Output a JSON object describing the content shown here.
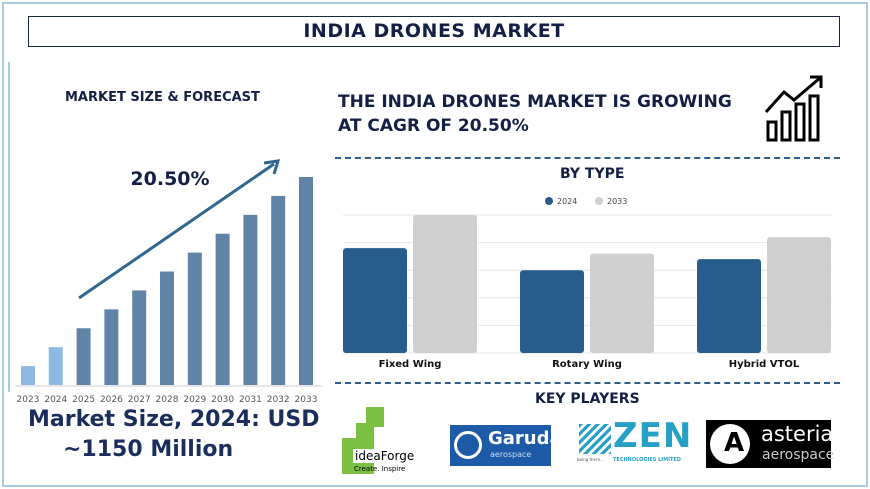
{
  "title": "INDIA DRONES MARKET",
  "left": {
    "heading": "MARKET SIZE & FORECAST",
    "market_size_line1": "Market Size, 2024: USD",
    "market_size_line2": "~1150 Million"
  },
  "headline": {
    "line1": "THE INDIA DRONES MARKET IS GROWING",
    "line2": "AT CAGR OF 20.50%",
    "icon": "growth-chart-icon"
  },
  "key_players": {
    "heading": "KEY PLAYERS",
    "logos": [
      {
        "name": "ideaForge",
        "tagline": "Create. Inspire"
      },
      {
        "name": "Garuda",
        "sub": "aerospace"
      },
      {
        "name": "ZEN",
        "sub": "TECHNOLOGIES LIMITED",
        "tagline": "being there..."
      },
      {
        "name": "asteria",
        "sub": "aerospace"
      }
    ]
  },
  "colors": {
    "navy": "#141f45",
    "bar_forecast": "#5f84a6",
    "bar_history": "#8db9e2",
    "series_2024": "#275d8c",
    "series_2033": "#cfcfcf",
    "arrow": "#2f6791"
  },
  "chart_data": [
    {
      "type": "bar",
      "title": "",
      "categories": [
        "2023",
        "2024",
        "2025",
        "2026",
        "2027",
        "2028",
        "2029",
        "2030",
        "2031",
        "2032",
        "2033"
      ],
      "values": [
        1,
        2,
        3,
        4,
        5,
        6,
        7,
        8,
        9,
        10,
        11
      ],
      "annotation": "20.50%",
      "history_categories": [
        "2023",
        "2024"
      ],
      "grid": false
    },
    {
      "type": "bar",
      "title": "BY TYPE",
      "categories": [
        "Fixed Wing",
        "Rotary Wing",
        "Hybrid VTOL"
      ],
      "series": [
        {
          "name": "2024",
          "values": [
            3.8,
            3.0,
            3.4
          ]
        },
        {
          "name": "2033",
          "values": [
            5.0,
            3.6,
            4.2
          ]
        }
      ],
      "ylim": [
        0,
        5
      ],
      "grid": true,
      "legend": "top"
    }
  ]
}
